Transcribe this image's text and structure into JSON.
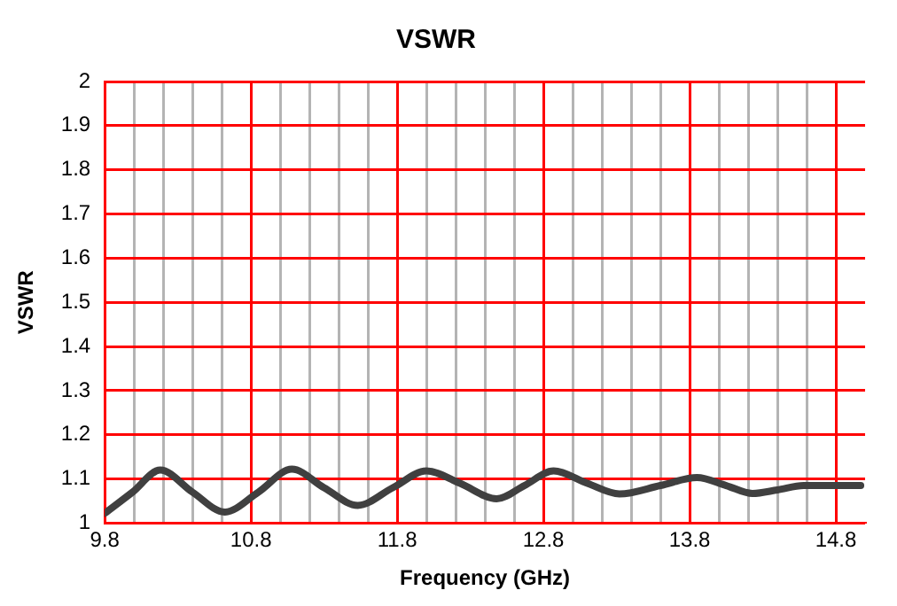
{
  "chart_data": {
    "type": "line",
    "title": "VSWR",
    "xlabel": "Frequency (GHz)",
    "ylabel": "VSWR",
    "x": [
      9.8,
      9.99,
      10.18,
      10.4,
      10.62,
      10.85,
      11.08,
      11.3,
      11.53,
      11.77,
      12.0,
      12.23,
      12.48,
      12.67,
      12.87,
      13.1,
      13.32,
      13.6,
      13.85,
      14.05,
      14.23,
      14.4,
      14.58,
      14.75,
      14.97
    ],
    "series": [
      {
        "color": "#404040",
        "values": [
          1.022,
          1.07,
          1.12,
          1.07,
          1.025,
          1.07,
          1.122,
          1.08,
          1.04,
          1.08,
          1.118,
          1.09,
          1.055,
          1.085,
          1.118,
          1.09,
          1.066,
          1.085,
          1.103,
          1.085,
          1.067,
          1.075,
          1.085,
          1.085,
          1.085
        ]
      }
    ],
    "xlim": [
      9.8,
      15.0
    ],
    "xticks": [
      9.8,
      {
        "value": 10.0,
        "label": null
      },
      {
        "value": 10.2,
        "label": null
      },
      {
        "value": 10.4,
        "label": null
      },
      {
        "value": 10.6,
        "label": null
      },
      10.8,
      {
        "value": 11.0,
        "label": null
      },
      {
        "value": 11.2,
        "label": null
      },
      {
        "value": 11.4,
        "label": null
      },
      {
        "value": 11.6,
        "label": null
      },
      11.8,
      {
        "value": 12.0,
        "label": null
      },
      {
        "value": 12.2,
        "label": null
      },
      {
        "value": 12.4,
        "label": null
      },
      {
        "value": 12.6,
        "label": null
      },
      12.8,
      {
        "value": 13.0,
        "label": null
      },
      {
        "value": 13.2,
        "label": null
      },
      {
        "value": 13.4,
        "label": null
      },
      {
        "value": 13.6,
        "label": null
      },
      13.8,
      {
        "value": 14.0,
        "label": null
      },
      {
        "value": 14.2,
        "label": null
      },
      {
        "value": 14.4,
        "label": null
      },
      {
        "value": 14.6,
        "label": null
      },
      14.8
    ],
    "ylim": [
      1,
      2
    ],
    "yticks": [
      1,
      1.1,
      1.2,
      1.3,
      1.4,
      1.5,
      1.6,
      1.7,
      1.8,
      1.9,
      2
    ],
    "grid": true,
    "legend": false,
    "marker": "none",
    "line_style": "solid"
  }
}
